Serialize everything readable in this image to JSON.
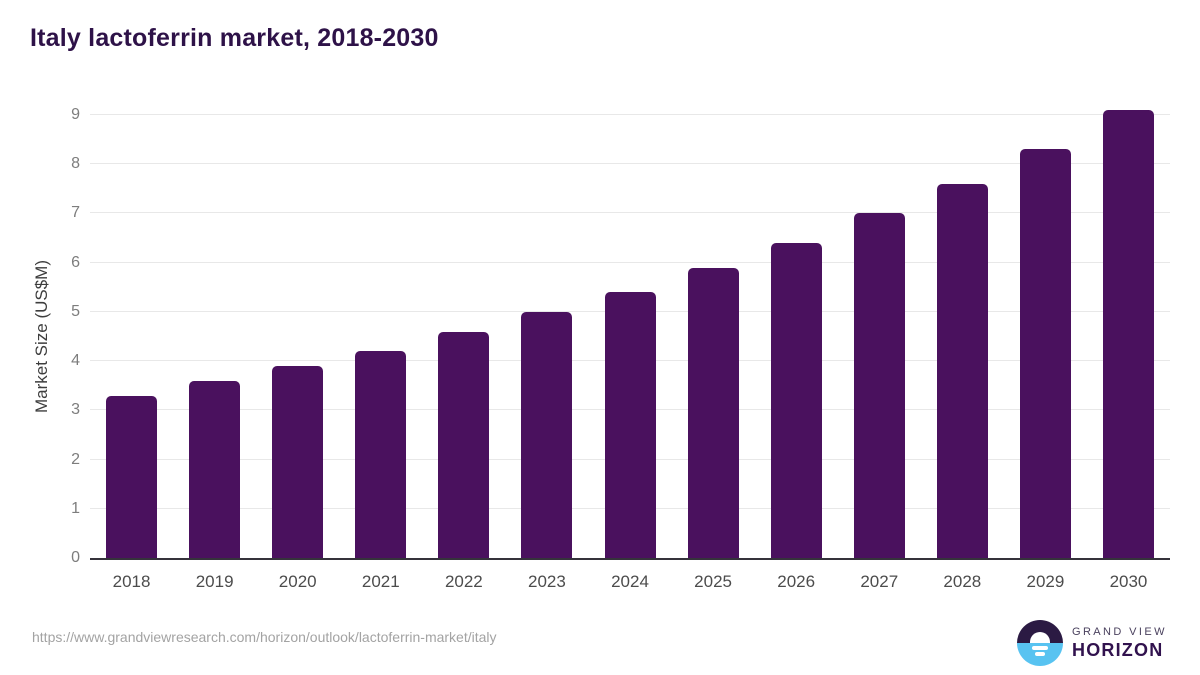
{
  "chart": {
    "title": "Italy lactoferrin market, 2018-2030",
    "ylabel": "Market Size (US$M)"
  },
  "chart_data": {
    "type": "bar",
    "title": "Italy lactoferrin market, 2018-2030",
    "categories": [
      "2018",
      "2019",
      "2020",
      "2021",
      "2022",
      "2023",
      "2024",
      "2025",
      "2026",
      "2027",
      "2028",
      "2029",
      "2030"
    ],
    "values": [
      3.3,
      3.6,
      3.9,
      4.2,
      4.6,
      5.0,
      5.4,
      5.9,
      6.4,
      7.0,
      7.6,
      8.3,
      9.1
    ],
    "xlabel": "",
    "ylabel": "Market Size (US$M)",
    "ylim": [
      0,
      9
    ],
    "ytick_step": 1,
    "grid": true,
    "legend": "none",
    "bar_color": "#4a115e",
    "gridline_color": "#e8e8e8",
    "axis_line_color": "#35333b"
  },
  "footer": {
    "url": "https://www.grandviewresearch.com/horizon/outlook/lactoferrin-market/italy",
    "logo": {
      "line1": "GRAND VIEW",
      "line2": "HORIZON"
    }
  },
  "colors": {
    "title": "#2e1248",
    "bar": "#4a115e",
    "logo_dark": "#2b1a43",
    "logo_blue": "#58c3f1",
    "url_gray": "#a3a3a3"
  }
}
